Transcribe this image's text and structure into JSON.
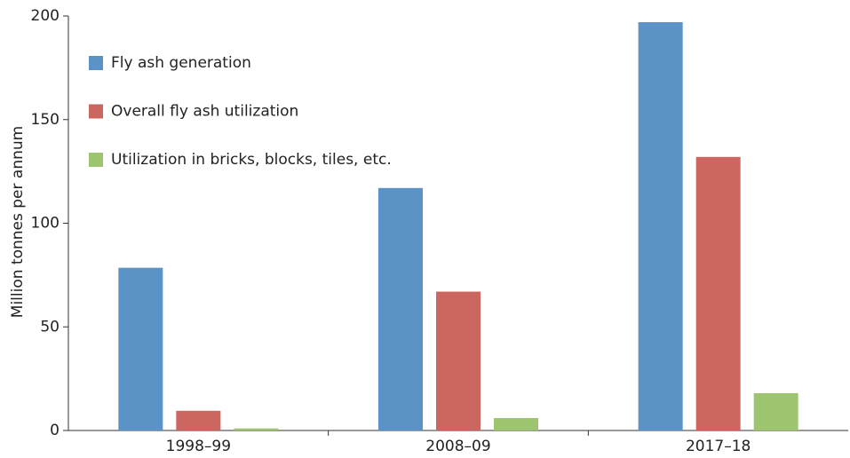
{
  "chart_data": {
    "type": "bar",
    "y_label": "Million tonnes per annum",
    "categories": [
      "1998–99",
      "2008–09",
      "2017–18"
    ],
    "series": [
      {
        "name": "Fly ash generation",
        "color": "#5b93c7",
        "values": [
          78.5,
          117,
          197
        ]
      },
      {
        "name": "Overall fly ash utilization",
        "color": "#cc6660",
        "values": [
          9.5,
          67,
          132
        ]
      },
      {
        "name": "Utilization in bricks, blocks, tiles, etc.",
        "color": "#9dc46f",
        "values": [
          1,
          6,
          18
        ]
      }
    ],
    "ylim": [
      0,
      200
    ],
    "yticks": [
      0,
      50,
      100,
      150,
      200
    ],
    "grid": false,
    "legend": "upper left"
  }
}
